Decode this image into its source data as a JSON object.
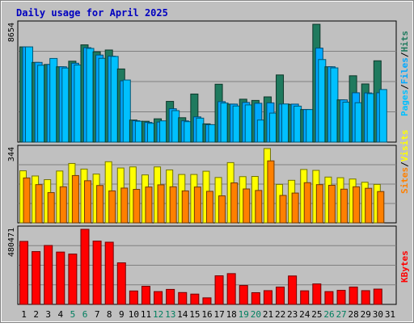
{
  "colors": {
    "background": "#c0c0c0",
    "title": "#0000c0",
    "hits": "#1f7a5e",
    "files": "#00a8ff",
    "pages": "#00c0ff",
    "visits": "#ffff00",
    "sites": "#ff8000",
    "kbytes": "#ff0000",
    "weekend_label": "#007f5f",
    "weekday_label": "#000000"
  },
  "chart_data": {
    "type": "bar",
    "title": "Daily usage for April 2025",
    "days": [
      "1",
      "2",
      "3",
      "4",
      "5",
      "6",
      "7",
      "8",
      "9",
      "10",
      "11",
      "12",
      "13",
      "14",
      "15",
      "16",
      "17",
      "18",
      "19",
      "20",
      "21",
      "22",
      "23",
      "24",
      "25",
      "26",
      "27",
      "28",
      "29",
      "30",
      "31"
    ],
    "weekend_days": [
      "5",
      "6",
      "12",
      "13",
      "19",
      "20",
      "26",
      "27"
    ],
    "panels": [
      {
        "name": "hits-files-pages",
        "ymax": 8654,
        "ymax_label": "8654",
        "legend": [
          {
            "text": "Pages",
            "color_key": "pages"
          },
          {
            "text": "/",
            "color_key": "weekday_label"
          },
          {
            "text": "Files",
            "color_key": "files"
          },
          {
            "text": "/",
            "color_key": "weekday_label"
          },
          {
            "text": "Hits",
            "color_key": "hits"
          }
        ],
        "series": [
          {
            "name": "Hits",
            "color_key": "hits",
            "values": [
              6990,
              5850,
              5700,
              5530,
              5940,
              7140,
              6630,
              6760,
              5370,
              1620,
              1530,
              1710,
              2990,
              1790,
              3530,
              1340,
              4250,
              2790,
              3150,
              3060,
              3320,
              4930,
              2770,
              2390,
              8650,
              5530,
              3100,
              4870,
              4270,
              5970,
              null
            ]
          },
          {
            "name": "Files",
            "color_key": "files",
            "values": [
              6990,
              5850,
              5700,
              5530,
              5790,
              6930,
              6390,
              6310,
              4500,
              1570,
              1450,
              1470,
              2450,
              1560,
              1850,
              1280,
              2970,
              2790,
              2910,
              2850,
              2880,
              2790,
              2790,
              2390,
              6900,
              5530,
              3100,
              3620,
              3610,
              3620,
              null
            ]
          },
          {
            "name": "Pages",
            "color_key": "pages",
            "values": [
              6990,
              5640,
              6140,
              5440,
              5660,
              6880,
              6150,
              6290,
              4560,
              1530,
              1380,
              1560,
              2310,
              1500,
              1760,
              1280,
              2870,
              2650,
              2730,
              1620,
              2130,
              2800,
              2640,
              2390,
              6060,
              5450,
              2930,
              2890,
              3560,
              3860,
              null
            ]
          }
        ]
      },
      {
        "name": "visits-sites",
        "ymax": 344,
        "ymax_label": "344",
        "legend": [
          {
            "text": "Sites",
            "color_key": "sites"
          },
          {
            "text": "/",
            "color_key": "weekday_label"
          },
          {
            "text": "Visits",
            "color_key": "visits"
          }
        ],
        "series": [
          {
            "name": "Visits",
            "color_key": "visits",
            "values": [
              241,
              217,
              200,
              240,
              275,
              249,
              226,
              283,
              254,
              259,
              222,
              259,
              245,
              224,
              224,
              239,
              210,
              279,
              214,
              215,
              344,
              178,
              197,
              247,
              243,
              212,
              209,
              203,
              188,
              178,
              null
            ]
          },
          {
            "name": "Sites",
            "color_key": "sites",
            "values": [
              208,
              177,
              140,
              167,
              219,
              195,
              173,
              148,
              161,
              155,
              166,
              176,
              167,
              148,
              166,
              146,
              125,
              185,
              157,
              150,
              287,
              127,
              138,
              186,
              177,
              174,
              156,
              167,
              160,
              145,
              null
            ]
          }
        ]
      },
      {
        "name": "kbytes",
        "ymax": 480471,
        "ymax_label": "480471",
        "legend": [
          {
            "text": "KBytes",
            "color_key": "kbytes"
          }
        ],
        "series": [
          {
            "name": "KBytes",
            "color_key": "kbytes",
            "values": [
              403000,
              338000,
              377000,
              335000,
              322000,
              480471,
              405000,
              398000,
              266000,
              86000,
              116000,
              82000,
              96000,
              76000,
              66000,
              42000,
              183000,
              197000,
              121000,
              75000,
              88000,
              111000,
              182000,
              87000,
              131000,
              82000,
              90000,
              111000,
              88000,
              98000,
              null
            ]
          }
        ]
      }
    ]
  }
}
